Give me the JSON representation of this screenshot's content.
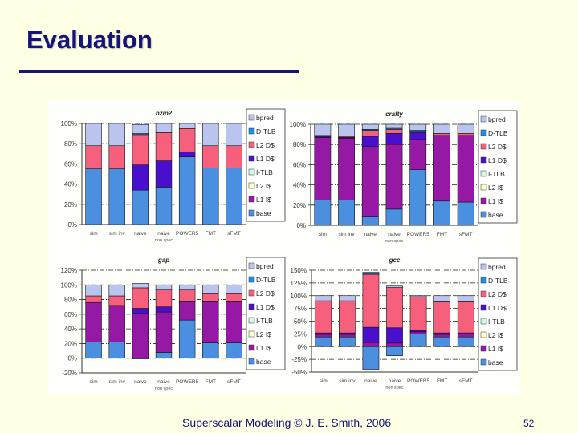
{
  "slide": {
    "title": "Evaluation",
    "footer": "Superscalar Modeling © J. E. Smith, 2006",
    "page_number": "52"
  },
  "colors": {
    "base": "#4a8fe0",
    "L1 I$": "#9619a6",
    "L2 I$": "#ffffc8",
    "I-TLB": "#ccfbe6",
    "L1 D$": "#4a0fcc",
    "L2 D$": "#f7607c",
    "D-TLB": "#1e90e6",
    "bpred": "#b9c5ef"
  },
  "chart_data": [
    {
      "type": "bar",
      "stacked": true,
      "title": "bzip2",
      "categories": [
        "sim",
        "sim inv",
        "naive",
        "naive",
        "POWER5",
        "FMT",
        "sFMT"
      ],
      "category_sublabels": [
        "",
        "",
        "",
        "non spec",
        "",
        "",
        ""
      ],
      "ylim": [
        0,
        100
      ],
      "yticks": [
        0,
        20,
        40,
        60,
        80,
        100
      ],
      "ytick_suffix": "%",
      "legend": "right",
      "grid": true,
      "series": [
        {
          "name": "base",
          "values": [
            55,
            55,
            34,
            37,
            67,
            56,
            56
          ]
        },
        {
          "name": "L1 I$",
          "values": [
            0,
            0,
            0,
            0,
            0,
            0,
            0
          ]
        },
        {
          "name": "L2 I$",
          "values": [
            0,
            0,
            0,
            0,
            0,
            0,
            0
          ]
        },
        {
          "name": "I-TLB",
          "values": [
            0,
            0,
            0,
            0,
            0,
            0,
            0
          ]
        },
        {
          "name": "L1 D$",
          "values": [
            0,
            0,
            25,
            26,
            5,
            0,
            0
          ]
        },
        {
          "name": "L2 D$",
          "values": [
            23,
            23,
            30,
            28,
            23,
            22,
            22
          ]
        },
        {
          "name": "D-TLB",
          "values": [
            0,
            0,
            1,
            0,
            0,
            0,
            0
          ]
        },
        {
          "name": "bpred",
          "values": [
            22,
            22,
            9,
            9,
            5,
            22,
            22
          ]
        }
      ]
    },
    {
      "type": "bar",
      "stacked": true,
      "title": "crafty",
      "categories": [
        "sim",
        "sim inv",
        "naive",
        "naive",
        "POWER5",
        "FMT",
        "sFMT"
      ],
      "category_sublabels": [
        "",
        "",
        "",
        "non spec",
        "",
        "",
        ""
      ],
      "ylim": [
        0,
        100
      ],
      "yticks": [
        0,
        20,
        40,
        60,
        80,
        100
      ],
      "ytick_suffix": "%",
      "legend": "right",
      "grid": true,
      "series": [
        {
          "name": "base",
          "values": [
            25,
            25,
            9,
            16,
            55,
            24,
            23
          ]
        },
        {
          "name": "L1 I$",
          "values": [
            62,
            61,
            69,
            64,
            30,
            65,
            66
          ]
        },
        {
          "name": "L2 I$",
          "values": [
            0,
            0,
            0,
            0,
            0,
            0,
            0
          ]
        },
        {
          "name": "I-TLB",
          "values": [
            0,
            0,
            0,
            0,
            0,
            0,
            0
          ]
        },
        {
          "name": "L1 D$",
          "values": [
            1,
            1,
            10,
            11,
            7,
            0,
            0
          ]
        },
        {
          "name": "L2 D$",
          "values": [
            1,
            1,
            6,
            4,
            1,
            2,
            2
          ]
        },
        {
          "name": "D-TLB",
          "values": [
            0,
            0,
            1,
            1,
            1,
            0,
            0
          ]
        },
        {
          "name": "bpred",
          "values": [
            11,
            12,
            5,
            4,
            6,
            9,
            9
          ]
        }
      ]
    },
    {
      "type": "bar",
      "stacked": true,
      "title": "gap",
      "categories": [
        "sim",
        "sim inv",
        "naive",
        "naive",
        "POWER5",
        "FMT",
        "sFMT"
      ],
      "category_sublabels": [
        "",
        "",
        "",
        "non spec",
        "",
        "",
        ""
      ],
      "ylim": [
        -20,
        120
      ],
      "yticks": [
        -20,
        0,
        20,
        40,
        60,
        80,
        100,
        120
      ],
      "ytick_suffix": "%",
      "legend": "right",
      "grid": true,
      "series": [
        {
          "name": "base",
          "values": [
            22,
            22,
            -1,
            8,
            52,
            21,
            21
          ]
        },
        {
          "name": "L1 I$",
          "values": [
            54,
            50,
            61,
            55,
            25,
            56,
            56
          ]
        },
        {
          "name": "L2 I$",
          "values": [
            0,
            0,
            0,
            0,
            0,
            0,
            0
          ]
        },
        {
          "name": "I-TLB",
          "values": [
            0,
            0,
            0,
            0,
            0,
            0,
            0
          ]
        },
        {
          "name": "L1 D$",
          "values": [
            0,
            0,
            7,
            7,
            0,
            0,
            0
          ]
        },
        {
          "name": "L2 D$",
          "values": [
            9,
            13,
            28,
            23,
            16,
            11,
            11
          ]
        },
        {
          "name": "D-TLB",
          "values": [
            0,
            0,
            0,
            0,
            0,
            0,
            0
          ]
        },
        {
          "name": "bpred",
          "values": [
            15,
            15,
            6,
            7,
            7,
            12,
            12
          ]
        }
      ]
    },
    {
      "type": "bar",
      "stacked": true,
      "title": "gcc",
      "categories": [
        "sim",
        "sim inv",
        "naive",
        "naive",
        "POWER5",
        "FMT",
        "sFMT"
      ],
      "category_sublabels": [
        "",
        "",
        "",
        "non spec",
        "",
        "",
        ""
      ],
      "ylim": [
        -50,
        150
      ],
      "yticks": [
        -50,
        -25,
        0,
        25,
        50,
        75,
        100,
        125,
        150
      ],
      "ytick_suffix": "%",
      "legend": "right",
      "grid": true,
      "series": [
        {
          "name": "base",
          "values": [
            19,
            19,
            -45,
            -18,
            25,
            19,
            19
          ]
        },
        {
          "name": "L1 I$",
          "values": [
            5,
            5,
            8,
            7,
            4,
            5,
            6
          ]
        },
        {
          "name": "L2 I$",
          "values": [
            0,
            0,
            0,
            0,
            0,
            0,
            0
          ]
        },
        {
          "name": "I-TLB",
          "values": [
            0,
            0,
            0,
            0,
            0,
            0,
            0
          ]
        },
        {
          "name": "L1 D$",
          "values": [
            3,
            3,
            30,
            30,
            3,
            3,
            2
          ]
        },
        {
          "name": "L2 D$",
          "values": [
            63,
            63,
            104,
            79,
            66,
            61,
            61
          ]
        },
        {
          "name": "D-TLB",
          "values": [
            0,
            0,
            2,
            0,
            0,
            0,
            0
          ]
        },
        {
          "name": "bpred",
          "values": [
            10,
            10,
            2,
            3,
            2,
            12,
            12
          ]
        }
      ]
    }
  ]
}
